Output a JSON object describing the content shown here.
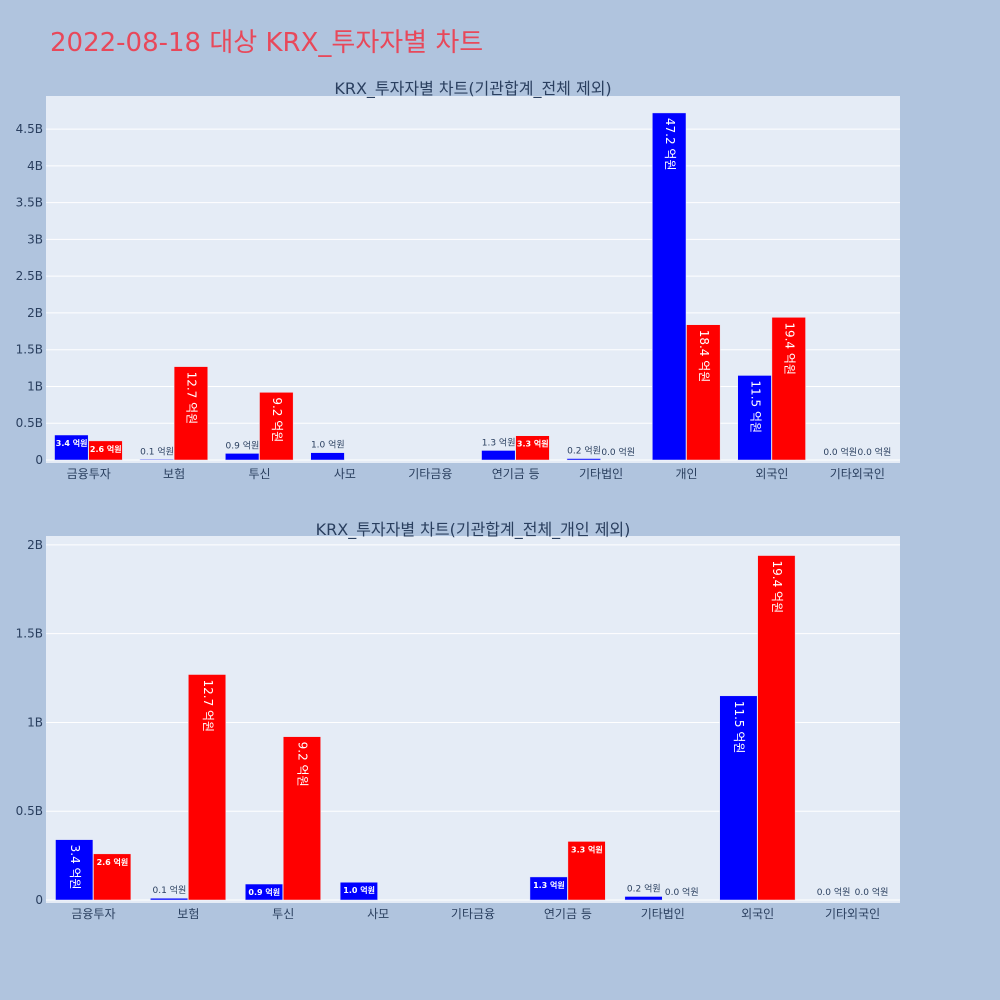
{
  "page": {
    "title": "2022-08-18 대상 KRX_투자자별 차트"
  },
  "colors": {
    "series_a": "#0000ff",
    "series_b": "#ff0000",
    "plot_bg": "#e5ecf6",
    "paper_bg": "#b0c4de",
    "title": "#e8485a"
  },
  "chart_data": [
    {
      "type": "bar",
      "title": "KRX_투자자별 차트(기관합계_전체 제외)",
      "categories": [
        "금융투자",
        "보험",
        "투신",
        "사모",
        "기타금융",
        "연기금 등",
        "기타법인",
        "개인",
        "외국인",
        "기타외국인"
      ],
      "ylim": [
        0,
        4950000000.0
      ],
      "yticks": [
        0,
        500000000.0,
        1000000000.0,
        1500000000.0,
        2000000000.0,
        2500000000.0,
        3000000000.0,
        3500000000.0,
        4000000000.0,
        4500000000.0
      ],
      "ytick_labels": [
        "0",
        "0.5B",
        "1B",
        "1.5B",
        "2B",
        "2.5B",
        "3B",
        "3.5B",
        "4B",
        "4.5B"
      ],
      "grid": true,
      "series": [
        {
          "color": "#0000ff",
          "values": [
            340000000,
            10000000,
            90000000,
            100000000,
            0,
            130000000,
            20000000,
            4720000000,
            1150000000,
            0
          ],
          "labels": [
            "3.4 억원",
            "0.1 억원",
            "0.9 억원",
            "1.0 억원",
            "",
            "1.3 억원",
            "0.2 억원",
            "47.2 억원",
            "11.5 억원",
            "0.0 억원"
          ]
        },
        {
          "color": "#ff0000",
          "values": [
            260000000,
            1270000000,
            920000000,
            0,
            0,
            330000000,
            0,
            1840000000,
            1940000000,
            0
          ],
          "labels": [
            "2.6 억원",
            "12.7 억원",
            "9.2 억원",
            "",
            "",
            "3.3 억원",
            "0.0 억원",
            "18.4 억원",
            "19.4 억원",
            "0.0 억원"
          ]
        }
      ]
    },
    {
      "type": "bar",
      "title": "KRX_투자자별 차트(기관합계_전체_개인 제외)",
      "categories": [
        "금융투자",
        "보험",
        "투신",
        "사모",
        "기타금융",
        "연기금 등",
        "기타법인",
        "외국인",
        "기타외국인"
      ],
      "ylim": [
        0,
        2050000000.0
      ],
      "yticks": [
        0,
        500000000.0,
        1000000000.0,
        1500000000.0,
        2000000000.0
      ],
      "ytick_labels": [
        "0",
        "0.5B",
        "1B",
        "1.5B",
        "2B"
      ],
      "grid": true,
      "series": [
        {
          "color": "#0000ff",
          "values": [
            340000000,
            10000000,
            90000000,
            100000000,
            0,
            130000000,
            20000000,
            1150000000,
            0
          ],
          "labels": [
            "3.4 억원",
            "0.1 억원",
            "0.9 억원",
            "1.0 억원",
            "",
            "1.3 억원",
            "0.2 억원",
            "11.5 억원",
            "0.0 억원"
          ]
        },
        {
          "color": "#ff0000",
          "values": [
            260000000,
            1270000000,
            920000000,
            0,
            0,
            330000000,
            0,
            1940000000,
            0
          ],
          "labels": [
            "2.6 억원",
            "12.7 억원",
            "9.2 억원",
            "",
            "",
            "3.3 억원",
            "0.0 억원",
            "19.4 억원",
            "0.0 억원"
          ]
        }
      ]
    }
  ]
}
